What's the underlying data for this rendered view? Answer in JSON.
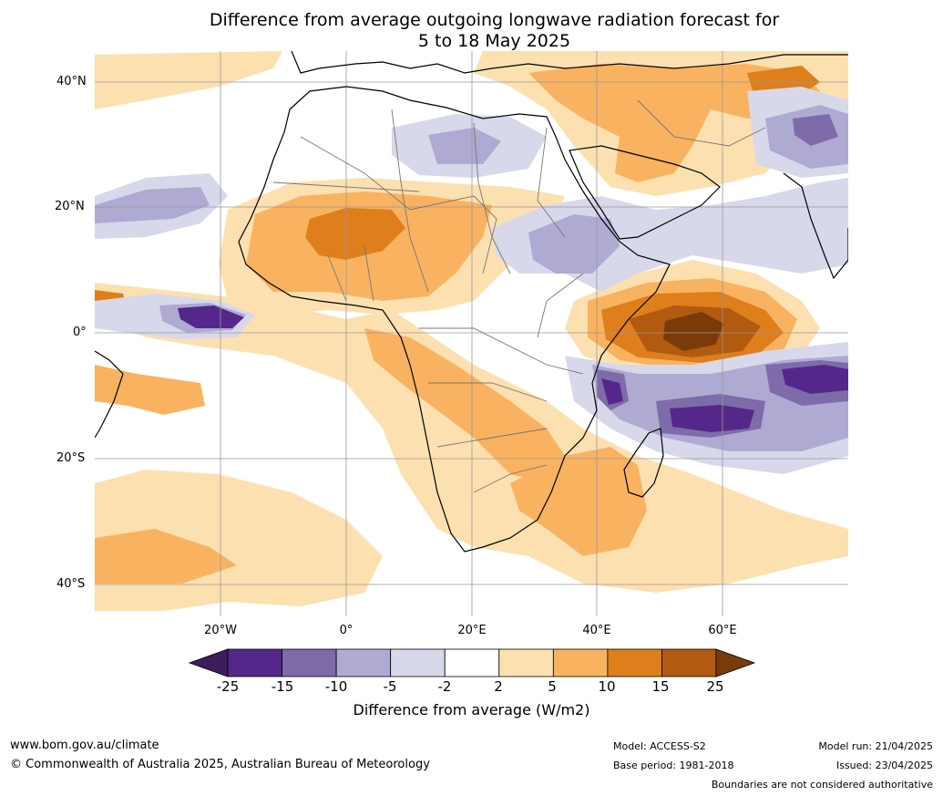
{
  "title": {
    "line1": "Difference from average outgoing longwave radiation forecast for",
    "line2": "5 to 18 May 2025"
  },
  "axes": {
    "lat_labels": [
      "40°N",
      "20°N",
      "0°",
      "20°S",
      "40°S"
    ],
    "lon_labels": [
      "20°W",
      "0°",
      "20°E",
      "40°E",
      "60°E"
    ]
  },
  "colorbar": {
    "ticks": [
      "-25",
      "-15",
      "-10",
      "-5",
      "-2",
      "2",
      "5",
      "10",
      "15",
      "25"
    ],
    "colors": [
      "#3d1d5c",
      "#54288a",
      "#7d6ca9",
      "#aeaad1",
      "#d8d8eb",
      "#ffffff",
      "#fde0b0",
      "#f9b260",
      "#de7f1c",
      "#b15a10",
      "#7a3b0a"
    ],
    "title": "Difference from average (W/m2)"
  },
  "footer": {
    "url": "www.bom.gov.au/climate",
    "copyright": "© Commonwealth of Australia 2025, Australian Bureau of Meteorology",
    "model": "Model: ACCESS-S2",
    "base_period": "Base period: 1981-2018",
    "model_run": "Model run: 21/04/2025",
    "issued": "Issued: 23/04/2025",
    "disclaimer": "Boundaries are not considered authoritative"
  }
}
